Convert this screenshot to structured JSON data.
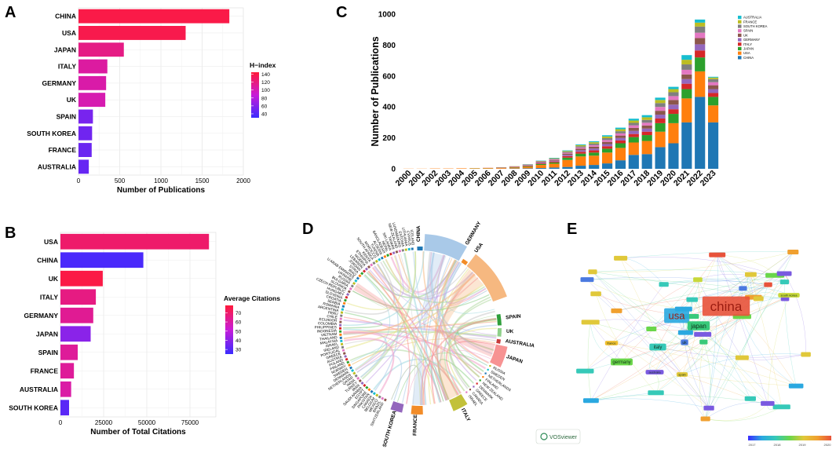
{
  "panels": {
    "a": "A",
    "b": "B",
    "c": "C",
    "d": "D",
    "e": "E"
  },
  "chart_data": [
    {
      "id": "A",
      "type": "bar",
      "orientation": "horizontal",
      "categories": [
        "CHINA",
        "USA",
        "JAPAN",
        "ITALY",
        "GERMANY",
        "UK",
        "SPAIN",
        "SOUTH KOREA",
        "FRANCE",
        "AUSTRALIA"
      ],
      "values": [
        1830,
        1300,
        550,
        350,
        335,
        325,
        175,
        165,
        160,
        125
      ],
      "hindex": [
        140,
        138,
        118,
        108,
        105,
        102,
        55,
        52,
        50,
        48
      ],
      "xlabel": "Number of Publications",
      "xlim": [
        0,
        2000
      ],
      "xticks": [
        0,
        500,
        1000,
        1500,
        2000
      ],
      "legend": {
        "title": "H−index",
        "ticks": [
          140,
          120,
          100,
          80,
          60,
          40
        ],
        "range": [
          30,
          145
        ],
        "colors": [
          "#3a2bff",
          "#ff1a3a"
        ]
      }
    },
    {
      "id": "B",
      "type": "bar",
      "orientation": "horizontal",
      "categories": [
        "USA",
        "CHINA",
        "UK",
        "ITALY",
        "GERMANY",
        "JAPAN",
        "SPAIN",
        "FRANCE",
        "AUSTRALIA",
        "SOUTH KOREA"
      ],
      "values": [
        86000,
        48000,
        24500,
        20500,
        19000,
        17500,
        10000,
        7800,
        6200,
        5000
      ],
      "avgcit": [
        70,
        28,
        76,
        66,
        63,
        40,
        62,
        62,
        60,
        31
      ],
      "xlabel": "Number of Total Citations",
      "xlim": [
        0,
        90000
      ],
      "xticks": [
        0,
        25000,
        50000,
        75000
      ],
      "legend": {
        "title": "Average Citations",
        "ticks": [
          70,
          60,
          50,
          40,
          30
        ],
        "range": [
          25,
          78
        ],
        "colors": [
          "#3a2bff",
          "#ff1a3a"
        ]
      }
    },
    {
      "id": "C",
      "type": "bar",
      "stacked": true,
      "ylabel": "Number of Publications",
      "ylim": [
        0,
        1000
      ],
      "yticks": [
        0,
        200,
        400,
        600,
        800,
        1000
      ],
      "categories": [
        "2000",
        "2001",
        "2002",
        "2003",
        "2004",
        "2005",
        "2006",
        "2007",
        "2008",
        "2009",
        "2010",
        "2011",
        "2012",
        "2013",
        "2014",
        "2015",
        "2016",
        "2017",
        "2018",
        "2019",
        "2020",
        "2021",
        "2022",
        "2023"
      ],
      "series": [
        {
          "name": "CHINA",
          "color": "#1f77b4",
          "values": [
            0,
            0,
            0,
            0,
            0,
            0,
            0,
            1,
            2,
            3,
            5,
            8,
            12,
            20,
            25,
            35,
            55,
            90,
            95,
            140,
            165,
            300,
            465,
            300
          ]
        },
        {
          "name": "USA",
          "color": "#ff7f0e",
          "values": [
            1,
            1,
            2,
            2,
            3,
            3,
            4,
            5,
            6,
            10,
            20,
            25,
            45,
            60,
            60,
            70,
            80,
            80,
            85,
            100,
            130,
            155,
            165,
            110
          ]
        },
        {
          "name": "JAPAN",
          "color": "#2ca02c",
          "values": [
            0,
            0,
            0,
            0,
            0,
            1,
            1,
            1,
            2,
            4,
            6,
            8,
            15,
            18,
            20,
            25,
            30,
            35,
            38,
            55,
            60,
            60,
            90,
            55
          ]
        },
        {
          "name": "ITALY",
          "color": "#d62728",
          "values": [
            0,
            0,
            0,
            0,
            0,
            0,
            1,
            1,
            2,
            3,
            4,
            6,
            10,
            12,
            14,
            16,
            18,
            20,
            22,
            30,
            30,
            35,
            45,
            25
          ]
        },
        {
          "name": "GERMANY",
          "color": "#9467bd",
          "values": [
            0,
            0,
            0,
            0,
            0,
            0,
            0,
            1,
            1,
            2,
            4,
            5,
            8,
            10,
            12,
            14,
            16,
            20,
            20,
            25,
            30,
            30,
            40,
            25
          ]
        },
        {
          "name": "UK",
          "color": "#8c564b",
          "values": [
            0,
            0,
            0,
            0,
            0,
            0,
            0,
            1,
            1,
            2,
            4,
            5,
            8,
            10,
            12,
            14,
            16,
            20,
            20,
            25,
            30,
            30,
            40,
            25
          ]
        },
        {
          "name": "SPAIN",
          "color": "#e377c2",
          "values": [
            0,
            0,
            0,
            0,
            0,
            0,
            0,
            0,
            1,
            2,
            3,
            4,
            6,
            8,
            10,
            12,
            14,
            16,
            18,
            25,
            25,
            30,
            35,
            20
          ]
        },
        {
          "name": "SOUTH KOREA",
          "color": "#7f7f7f",
          "values": [
            0,
            0,
            0,
            0,
            0,
            0,
            0,
            0,
            1,
            2,
            3,
            4,
            6,
            8,
            10,
            12,
            14,
            16,
            18,
            25,
            25,
            35,
            40,
            20
          ]
        },
        {
          "name": "FRANCE",
          "color": "#bcbd22",
          "values": [
            0,
            0,
            0,
            0,
            0,
            0,
            0,
            0,
            1,
            1,
            2,
            3,
            5,
            7,
            9,
            11,
            13,
            15,
            17,
            20,
            20,
            30,
            25,
            10
          ]
        },
        {
          "name": "AUSTRALIA",
          "color": "#17becf",
          "values": [
            0,
            0,
            0,
            0,
            0,
            0,
            0,
            0,
            0,
            1,
            2,
            3,
            4,
            5,
            6,
            8,
            10,
            12,
            14,
            15,
            15,
            30,
            20,
            5
          ]
        }
      ],
      "legend_order": [
        "AUSTRALIA",
        "FRANCE",
        "SOUTH KOREA",
        "SPAIN",
        "UK",
        "GERMANY",
        "ITALY",
        "JAPAN",
        "USA",
        "CHINA"
      ]
    },
    {
      "id": "D",
      "type": "chord",
      "major": [
        {
          "name": "CHINA",
          "color": "#1f77b4"
        },
        {
          "name": "GERMANY",
          "color": "#d4d4d4"
        },
        {
          "name": "USA",
          "color": "#f28c28"
        },
        {
          "name": "SPAIN",
          "color": "#2e9e3a"
        },
        {
          "name": "UK",
          "color": "#8fd08a"
        },
        {
          "name": "AUSTRALIA",
          "color": "#c83a3a"
        },
        {
          "name": "JAPAN",
          "color": "#f79393"
        },
        {
          "name": "ITALY",
          "color": "#c2c13a"
        },
        {
          "name": "FRANCE",
          "color": "#f28c28"
        },
        {
          "name": "SOUTH KOREA",
          "color": "#9467bd"
        }
      ],
      "minor": [
        "SWITZERLAND",
        "BRAZIL",
        "MEXICO",
        "BELGIUM",
        "CANADA",
        "PAKISTAN",
        "SINGAPORE",
        "EGYPT",
        "SAUDI ARABIA",
        "IRAN",
        "TURKEY",
        "INDIA",
        "QATAR",
        "NETHERLANDS",
        "DENMARK",
        "SWEDEN",
        "NORWAY",
        "FINLAND",
        "POLAND",
        "AUSTRIA",
        "GREECE",
        "PORTUGAL",
        "IRELAND",
        "ISRAEL",
        "MALAYSIA",
        "THAILAND",
        "VIETNAM",
        "INDONESIA",
        "PHILIPPINES",
        "COLOMBIA",
        "ECUADOR",
        "CHILE",
        "PERU",
        "ARGENTINA",
        "ROMANIA",
        "SERBIA",
        "CROATIA",
        "SLOVENIA",
        "HUNGARY",
        "CZECH REPUBLIC",
        "SLOVAKIA",
        "BULGARIA",
        "RUSSIA",
        "UKRAINE",
        "U ARAB EMIRATES",
        "IRAQ",
        "SYRIA",
        "JORDAN",
        "LEBANON",
        "NIGERIA",
        "ETHIOPIA",
        "KENYA",
        "SOUTH AFRICA",
        "MOROCCO",
        "TUNISIA",
        "ALGERIA",
        "BANGLADESH",
        "NEPAL",
        "SRI LANKA",
        "TAIWAN",
        "NEW ZEALAND",
        "LUXEMBOURG",
        "ESTONIA",
        "LITHUANIA",
        "CYPRUS",
        "ICELAND"
      ]
    },
    {
      "id": "E",
      "type": "network",
      "logo": "VOSviewer",
      "scale_ticks": [
        "2017",
        "2018",
        "2019",
        "2020"
      ],
      "nodes": [
        {
          "label": "china",
          "size": "big",
          "color": "#e8523a"
        },
        {
          "label": "usa",
          "size": "big",
          "color": "#2aa8e0"
        },
        {
          "label": "japan",
          "size": "mid",
          "color": "#38c97a"
        },
        {
          "label": "italy",
          "size": "mid",
          "color": "#36c9b8"
        },
        {
          "label": "germany",
          "size": "mid",
          "color": "#6ad64a"
        },
        {
          "label": "uk",
          "size": "mid",
          "color": "#4b7ae0"
        },
        {
          "label": "spain",
          "size": "small",
          "color": "#e0c83a"
        },
        {
          "label": "france",
          "size": "small",
          "color": "#f0c030"
        },
        {
          "label": "south korea",
          "size": "small",
          "color": "#c8d83a"
        },
        {
          "label": "australia",
          "size": "small",
          "color": "#7a5ae0"
        }
      ]
    }
  ]
}
